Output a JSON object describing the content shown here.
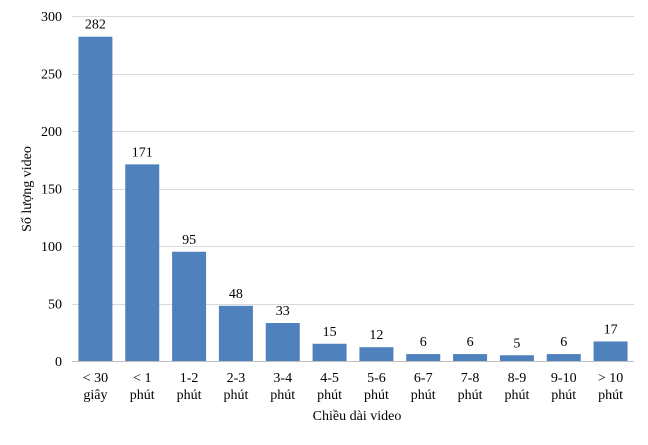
{
  "chart_data": {
    "type": "bar",
    "title": "",
    "xlabel": "Chiều dài video",
    "ylabel": "Số lượng video",
    "categories": [
      [
        "< 30",
        "giây"
      ],
      [
        "< 1",
        "phút"
      ],
      [
        "1-2",
        "phút"
      ],
      [
        "2-3",
        "phút"
      ],
      [
        "3-4",
        "phút"
      ],
      [
        "4-5",
        "phút"
      ],
      [
        "5-6",
        "phút"
      ],
      [
        "6-7",
        "phút"
      ],
      [
        "7-8",
        "phút"
      ],
      [
        "8-9",
        "phút"
      ],
      [
        "9-10",
        "phút"
      ],
      [
        "> 10",
        "phút"
      ]
    ],
    "values": [
      282,
      171,
      95,
      48,
      33,
      15,
      12,
      6,
      6,
      5,
      6,
      17
    ],
    "data_labels": [
      "282",
      "171",
      "95",
      "48",
      "33",
      "15",
      "12",
      "6",
      "6",
      "5",
      "6",
      "17"
    ],
    "ylim": [
      0,
      300
    ],
    "yticks": [
      0,
      50,
      100,
      150,
      200,
      250,
      300
    ],
    "grid": true,
    "legend": "none",
    "colors": {
      "bar": "#4f81bd",
      "grid": "#d9d9d9",
      "axis": "#bfbfbf"
    }
  }
}
